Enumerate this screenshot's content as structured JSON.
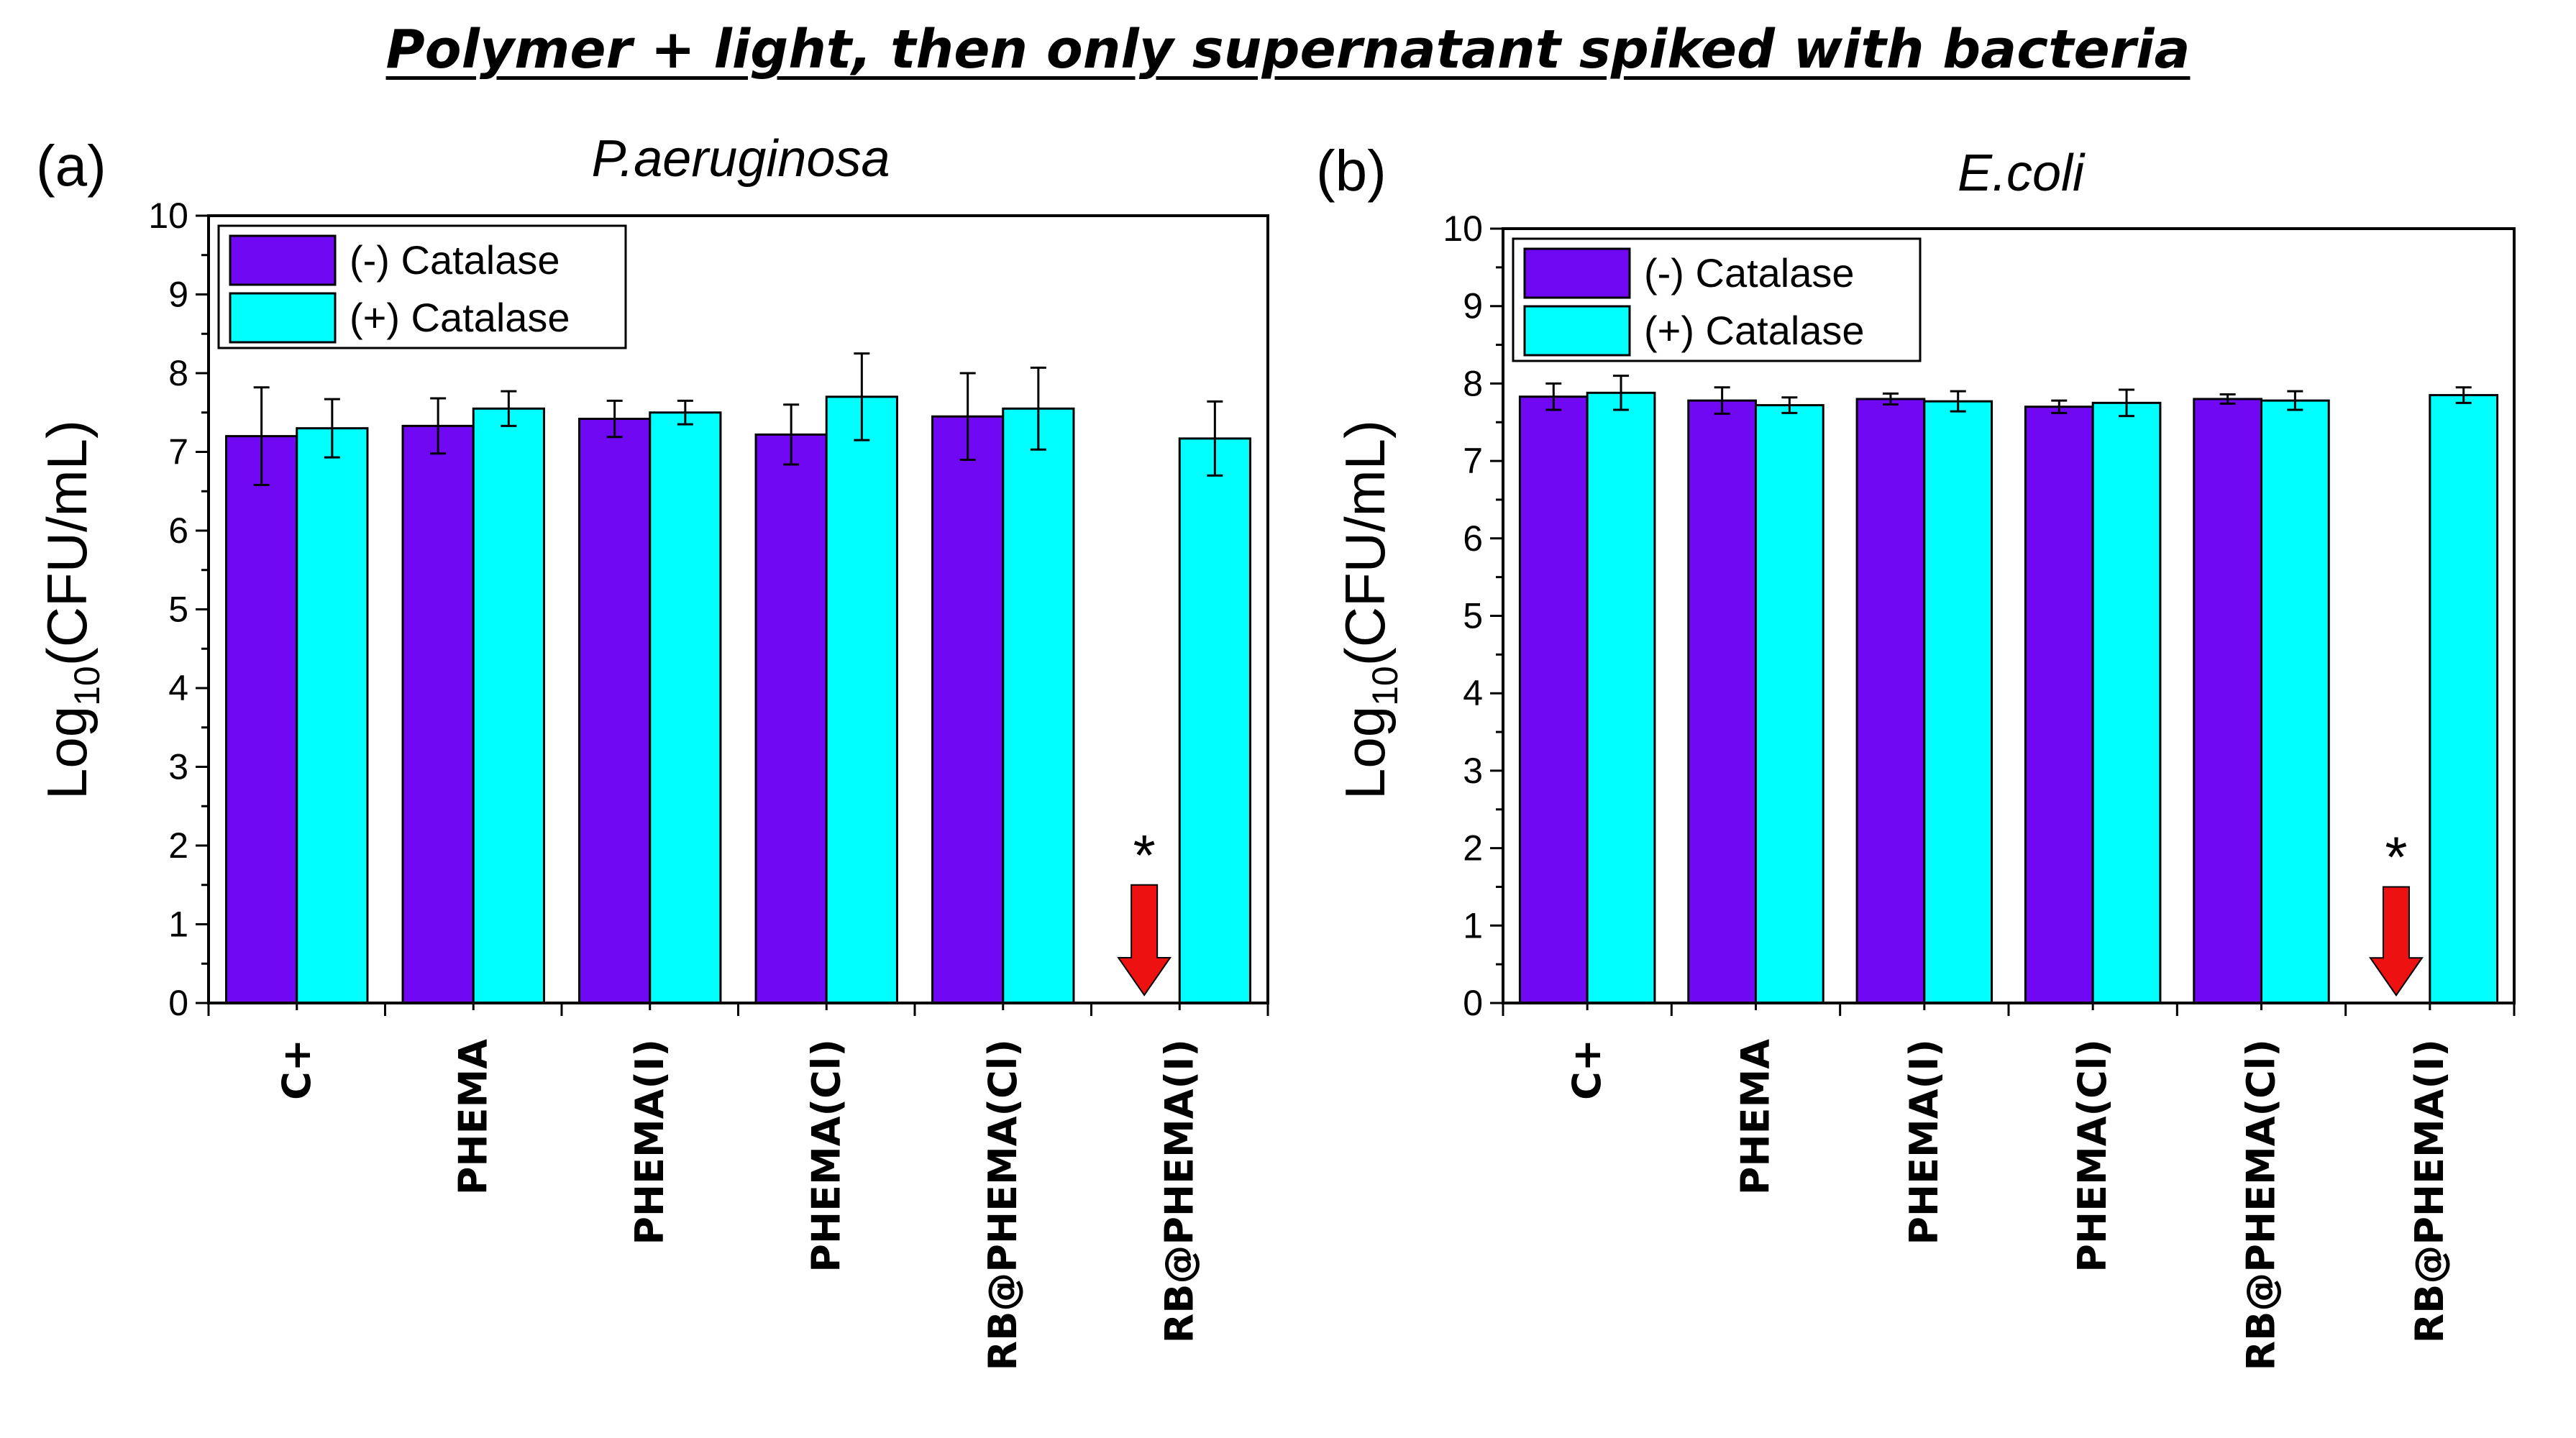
{
  "title": "Polymer + light, then only supernatant spiked with bacteria",
  "colors": {
    "minus": "#7108F4",
    "plus": "#00FFFF",
    "arrow": "#EE1111",
    "stroke": "#000000"
  },
  "chart_data": [
    {
      "type": "bar",
      "panel": "(a)",
      "title": "P.aeruginosa",
      "ylabel_main": "Log",
      "ylabel_sub": "10",
      "ylabel_rest": "(CFU/mL)",
      "ylim": [
        0,
        10
      ],
      "yticks": [
        "0",
        "1",
        "2",
        "3",
        "4",
        "5",
        "6",
        "7",
        "8",
        "9",
        "10"
      ],
      "categories": [
        "C+",
        "PHEMA",
        "PHEMA(I)",
        "PHEMA(Cl)",
        "RB@PHEMA(Cl)",
        "RB@PHEMA(I)"
      ],
      "series": [
        {
          "name": "(-) Catalase",
          "values": [
            7.2,
            7.33,
            7.42,
            7.22,
            7.45,
            0
          ],
          "errors": [
            0.62,
            0.35,
            0.23,
            0.38,
            0.55,
            0
          ]
        },
        {
          "name": "(+) Catalase",
          "values": [
            7.3,
            7.55,
            7.5,
            7.7,
            7.55,
            7.17
          ],
          "errors": [
            0.37,
            0.22,
            0.15,
            0.55,
            0.52,
            0.47
          ]
        }
      ],
      "legend": "top-left",
      "annotation": {
        "category": "RB@PHEMA(I)",
        "series": "(-) Catalase",
        "text": "*",
        "from": 1.5,
        "to": 0.1
      }
    },
    {
      "type": "bar",
      "panel": "(b)",
      "title": "E.coli",
      "ylabel_main": "Log",
      "ylabel_sub": "10",
      "ylabel_rest": "(CFU/mL)",
      "ylim": [
        0,
        10
      ],
      "yticks": [
        "0",
        "1",
        "2",
        "3",
        "4",
        "5",
        "6",
        "7",
        "8",
        "9",
        "10"
      ],
      "categories": [
        "C+",
        "PHEMA",
        "PHEMA(I)",
        "PHEMA(Cl)",
        "RB@PHEMA(Cl)",
        "RB@PHEMA(I)"
      ],
      "series": [
        {
          "name": "(-) Catalase",
          "values": [
            7.83,
            7.78,
            7.8,
            7.7,
            7.8,
            0
          ],
          "errors": [
            0.17,
            0.17,
            0.07,
            0.08,
            0.06,
            0
          ]
        },
        {
          "name": "(+) Catalase",
          "values": [
            7.88,
            7.72,
            7.77,
            7.75,
            7.78,
            7.85
          ],
          "errors": [
            0.22,
            0.1,
            0.13,
            0.17,
            0.12,
            0.1
          ]
        }
      ],
      "legend": "top-left",
      "annotation": {
        "category": "RB@PHEMA(I)",
        "series": "(-) Catalase",
        "text": "*",
        "from": 1.5,
        "to": 0.1
      }
    }
  ]
}
